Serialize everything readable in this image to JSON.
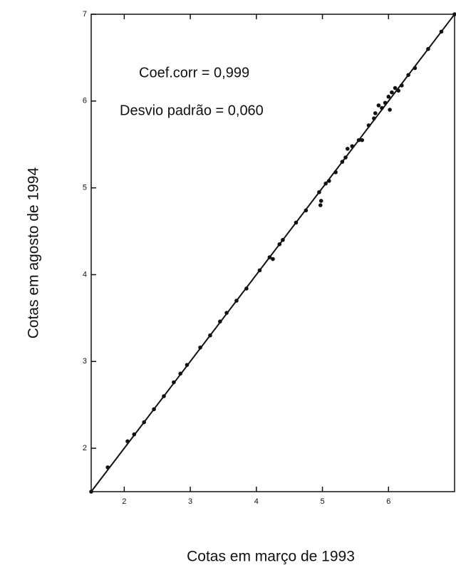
{
  "chart_data": {
    "type": "scatter",
    "xlabel": "Cotas em março de 1993",
    "ylabel": "Cotas em agosto de 1994",
    "annotations": [
      "Coef.corr = 0,999",
      "Desvio padrão = 0,060"
    ],
    "xlim": [
      1.5,
      7
    ],
    "ylim": [
      1.5,
      7
    ],
    "xticks": [
      2,
      3,
      4,
      5,
      6
    ],
    "yticks": [
      2,
      3,
      4,
      5,
      6,
      7
    ],
    "color": "#111111",
    "x": [
      1.5,
      1.75,
      2.05,
      2.15,
      2.3,
      2.45,
      2.6,
      2.75,
      2.85,
      2.95,
      3.15,
      3.3,
      3.45,
      3.55,
      3.7,
      3.85,
      4.05,
      4.2,
      4.25,
      4.35,
      4.4,
      4.6,
      4.75,
      4.95,
      4.97,
      4.98,
      5.05,
      5.1,
      5.2,
      5.3,
      5.35,
      5.38,
      5.45,
      5.55,
      5.6,
      5.7,
      5.78,
      5.8,
      5.85,
      5.9,
      5.95,
      6.0,
      6.02,
      6.05,
      6.1,
      6.15,
      6.2,
      6.3,
      6.4,
      6.6,
      6.8,
      7.0
    ],
    "y": [
      1.5,
      1.78,
      2.08,
      2.16,
      2.3,
      2.45,
      2.6,
      2.76,
      2.86,
      2.96,
      3.16,
      3.3,
      3.46,
      3.56,
      3.7,
      3.84,
      4.05,
      4.2,
      4.18,
      4.35,
      4.4,
      4.6,
      4.74,
      4.95,
      4.8,
      4.85,
      5.05,
      5.08,
      5.18,
      5.3,
      5.35,
      5.45,
      5.48,
      5.55,
      5.55,
      5.72,
      5.8,
      5.86,
      5.95,
      5.92,
      5.98,
      6.05,
      5.9,
      6.1,
      6.15,
      6.12,
      6.18,
      6.3,
      6.38,
      6.6,
      6.8,
      7.0
    ],
    "fit": {
      "x": [
        1.5,
        7
      ],
      "y": [
        1.5,
        7
      ]
    }
  }
}
